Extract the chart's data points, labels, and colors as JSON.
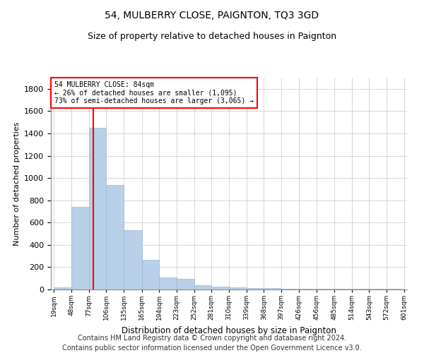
{
  "title": "54, MULBERRY CLOSE, PAIGNTON, TQ3 3GD",
  "subtitle": "Size of property relative to detached houses in Paignton",
  "xlabel": "Distribution of detached houses by size in Paignton",
  "ylabel": "Number of detached properties",
  "bar_values": [
    22,
    740,
    1450,
    940,
    530,
    265,
    105,
    95,
    40,
    28,
    20,
    15,
    10,
    8,
    5,
    5,
    5,
    5,
    5,
    5
  ],
  "bin_edges": [
    19,
    48,
    77,
    106,
    135,
    165,
    194,
    223,
    252,
    281,
    310,
    339,
    368,
    397,
    426,
    456,
    485,
    514,
    543,
    572,
    601
  ],
  "tick_labels": [
    "19sqm",
    "48sqm",
    "77sqm",
    "106sqm",
    "135sqm",
    "165sqm",
    "194sqm",
    "223sqm",
    "252sqm",
    "281sqm",
    "310sqm",
    "339sqm",
    "368sqm",
    "397sqm",
    "426sqm",
    "456sqm",
    "485sqm",
    "514sqm",
    "543sqm",
    "572sqm",
    "601sqm"
  ],
  "bar_color": "#b8d0e8",
  "bar_edgecolor": "#9ab8d8",
  "grid_color": "#d0d0d0",
  "vline_x": 84,
  "vline_color": "red",
  "annotation_text": "54 MULBERRY CLOSE: 84sqm\n← 26% of detached houses are smaller (1,095)\n73% of semi-detached houses are larger (3,065) →",
  "annotation_box_color": "white",
  "annotation_box_edgecolor": "red",
  "ylim": [
    0,
    1900
  ],
  "yticks": [
    0,
    200,
    400,
    600,
    800,
    1000,
    1200,
    1400,
    1600,
    1800
  ],
  "footnote": "Contains HM Land Registry data © Crown copyright and database right 2024.\nContains public sector information licensed under the Open Government Licence v3.0.",
  "title_fontsize": 10,
  "subtitle_fontsize": 9,
  "footnote_fontsize": 7,
  "ylabel_fontsize": 8,
  "xlabel_fontsize": 8.5,
  "ytick_fontsize": 8,
  "xtick_fontsize": 6.5
}
